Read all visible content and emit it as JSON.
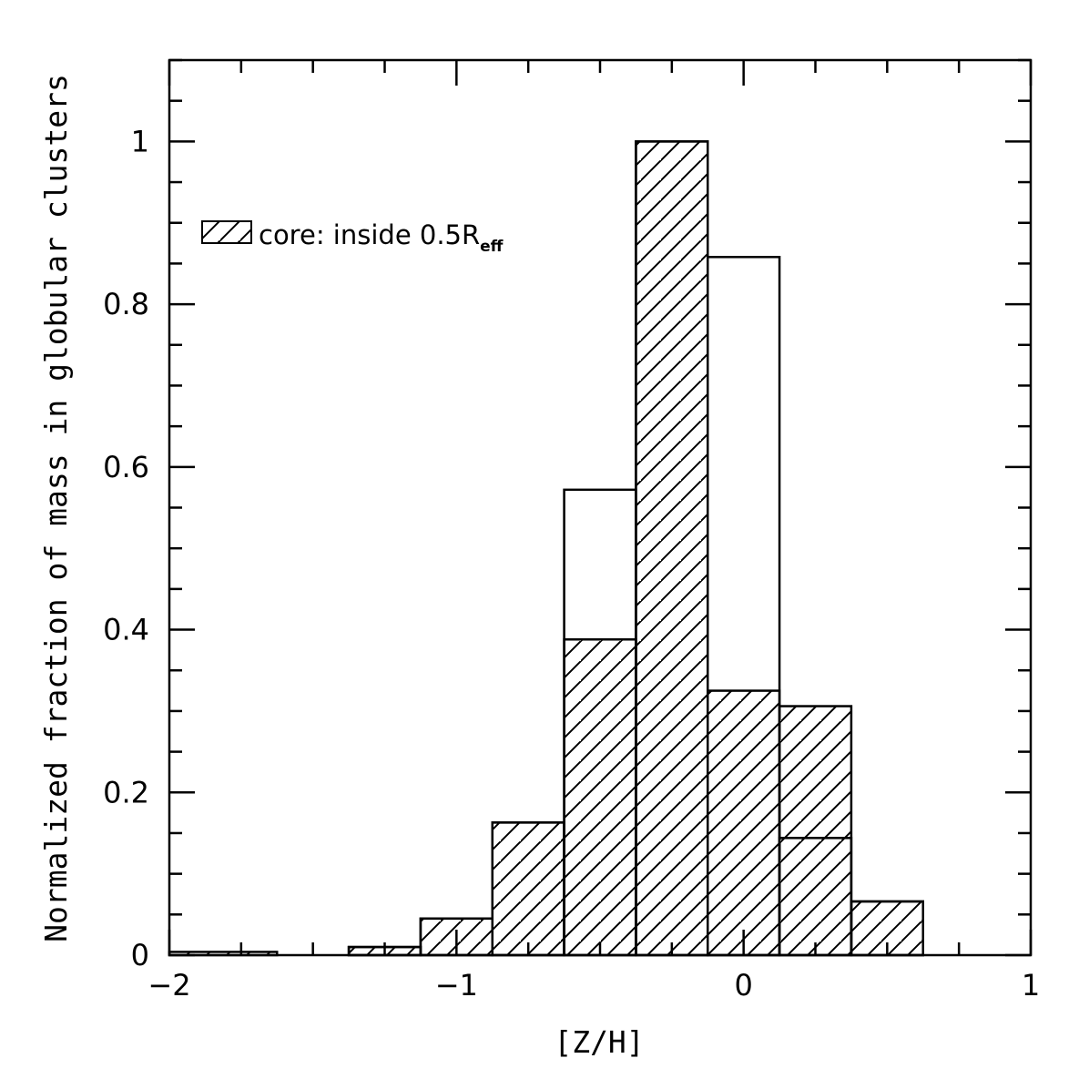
{
  "chart_data": {
    "type": "bar",
    "title": "",
    "xlabel": "[Z/H]",
    "ylabel": "Normalized fraction of mass in globular clusters",
    "xlim": [
      -2,
      1
    ],
    "ylim": [
      0,
      1.1
    ],
    "x_ticks": [
      -2,
      -1,
      0,
      1
    ],
    "x_tick_labels": [
      "−2",
      "−1",
      "0",
      "1"
    ],
    "y_ticks": [
      0,
      0.2,
      0.4,
      0.6,
      0.8,
      1
    ],
    "y_tick_labels": [
      "0",
      "0.2",
      "0.4",
      "0.6",
      "0.8",
      "1"
    ],
    "grid": false,
    "legend_position": "top-left",
    "bin_edges": [
      -2.0,
      -1.625,
      -1.375,
      -1.125,
      -0.875,
      -0.625,
      -0.375,
      -0.125,
      0.125,
      0.375,
      0.625
    ],
    "series": [
      {
        "name": "",
        "fill": "none",
        "values": [
          0,
          0,
          0.01,
          0.045,
          0.163,
          0.572,
          1.0,
          0.858,
          0.144,
          0.066
        ]
      },
      {
        "name": "core: inside 0.5R",
        "name_subscript": "eff",
        "fill": "hatched",
        "values": [
          0.004,
          0,
          0.01,
          0.045,
          0.163,
          0.388,
          1.0,
          0.325,
          0.306,
          0.066
        ]
      }
    ]
  }
}
